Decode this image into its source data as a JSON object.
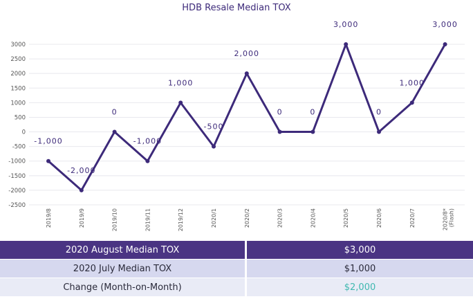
{
  "chart_data": {
    "type": "line",
    "title": "HDB Resale Median TOX",
    "categories": [
      "2019/8",
      "2019/9",
      "2019/10",
      "2019/11",
      "2019/12",
      "2020/1",
      "2020/2",
      "2020/3",
      "2020/4",
      "2020/5",
      "2020/6",
      "2020/7",
      "2020/8*"
    ],
    "category_note": "(Flash)",
    "series": [
      {
        "name": "",
        "values": [
          -1000,
          -2000,
          0,
          -1000,
          1000,
          -500,
          2000,
          0,
          0,
          3000,
          0,
          1000,
          3000
        ]
      }
    ],
    "data_labels": [
      "-1,000",
      "-2,000",
      "0",
      "-1,000",
      "1,000",
      "-500",
      "2,000",
      "0",
      "0",
      "3,000",
      "0",
      "1,000",
      "3,000"
    ],
    "y_ticks": [
      3000,
      2500,
      2000,
      1500,
      1000,
      500,
      0,
      -500,
      -1000,
      -1500,
      -2000,
      -2500
    ],
    "ylim": [
      -2500,
      3000
    ],
    "grid": true,
    "line_color": "#3d2a7a"
  },
  "summary": {
    "rows": [
      {
        "label": "2020 August Median TOX",
        "value": "$3,000"
      },
      {
        "label": "2020 July Median TOX",
        "value": "$1,000"
      },
      {
        "label": "Change (Month-on-Month)",
        "value": "$2,000"
      }
    ],
    "colors": {
      "header": "#4a3483",
      "row1": "#d6d8ef",
      "row2": "#e9ebf6",
      "change": "#3fb8b0"
    }
  }
}
